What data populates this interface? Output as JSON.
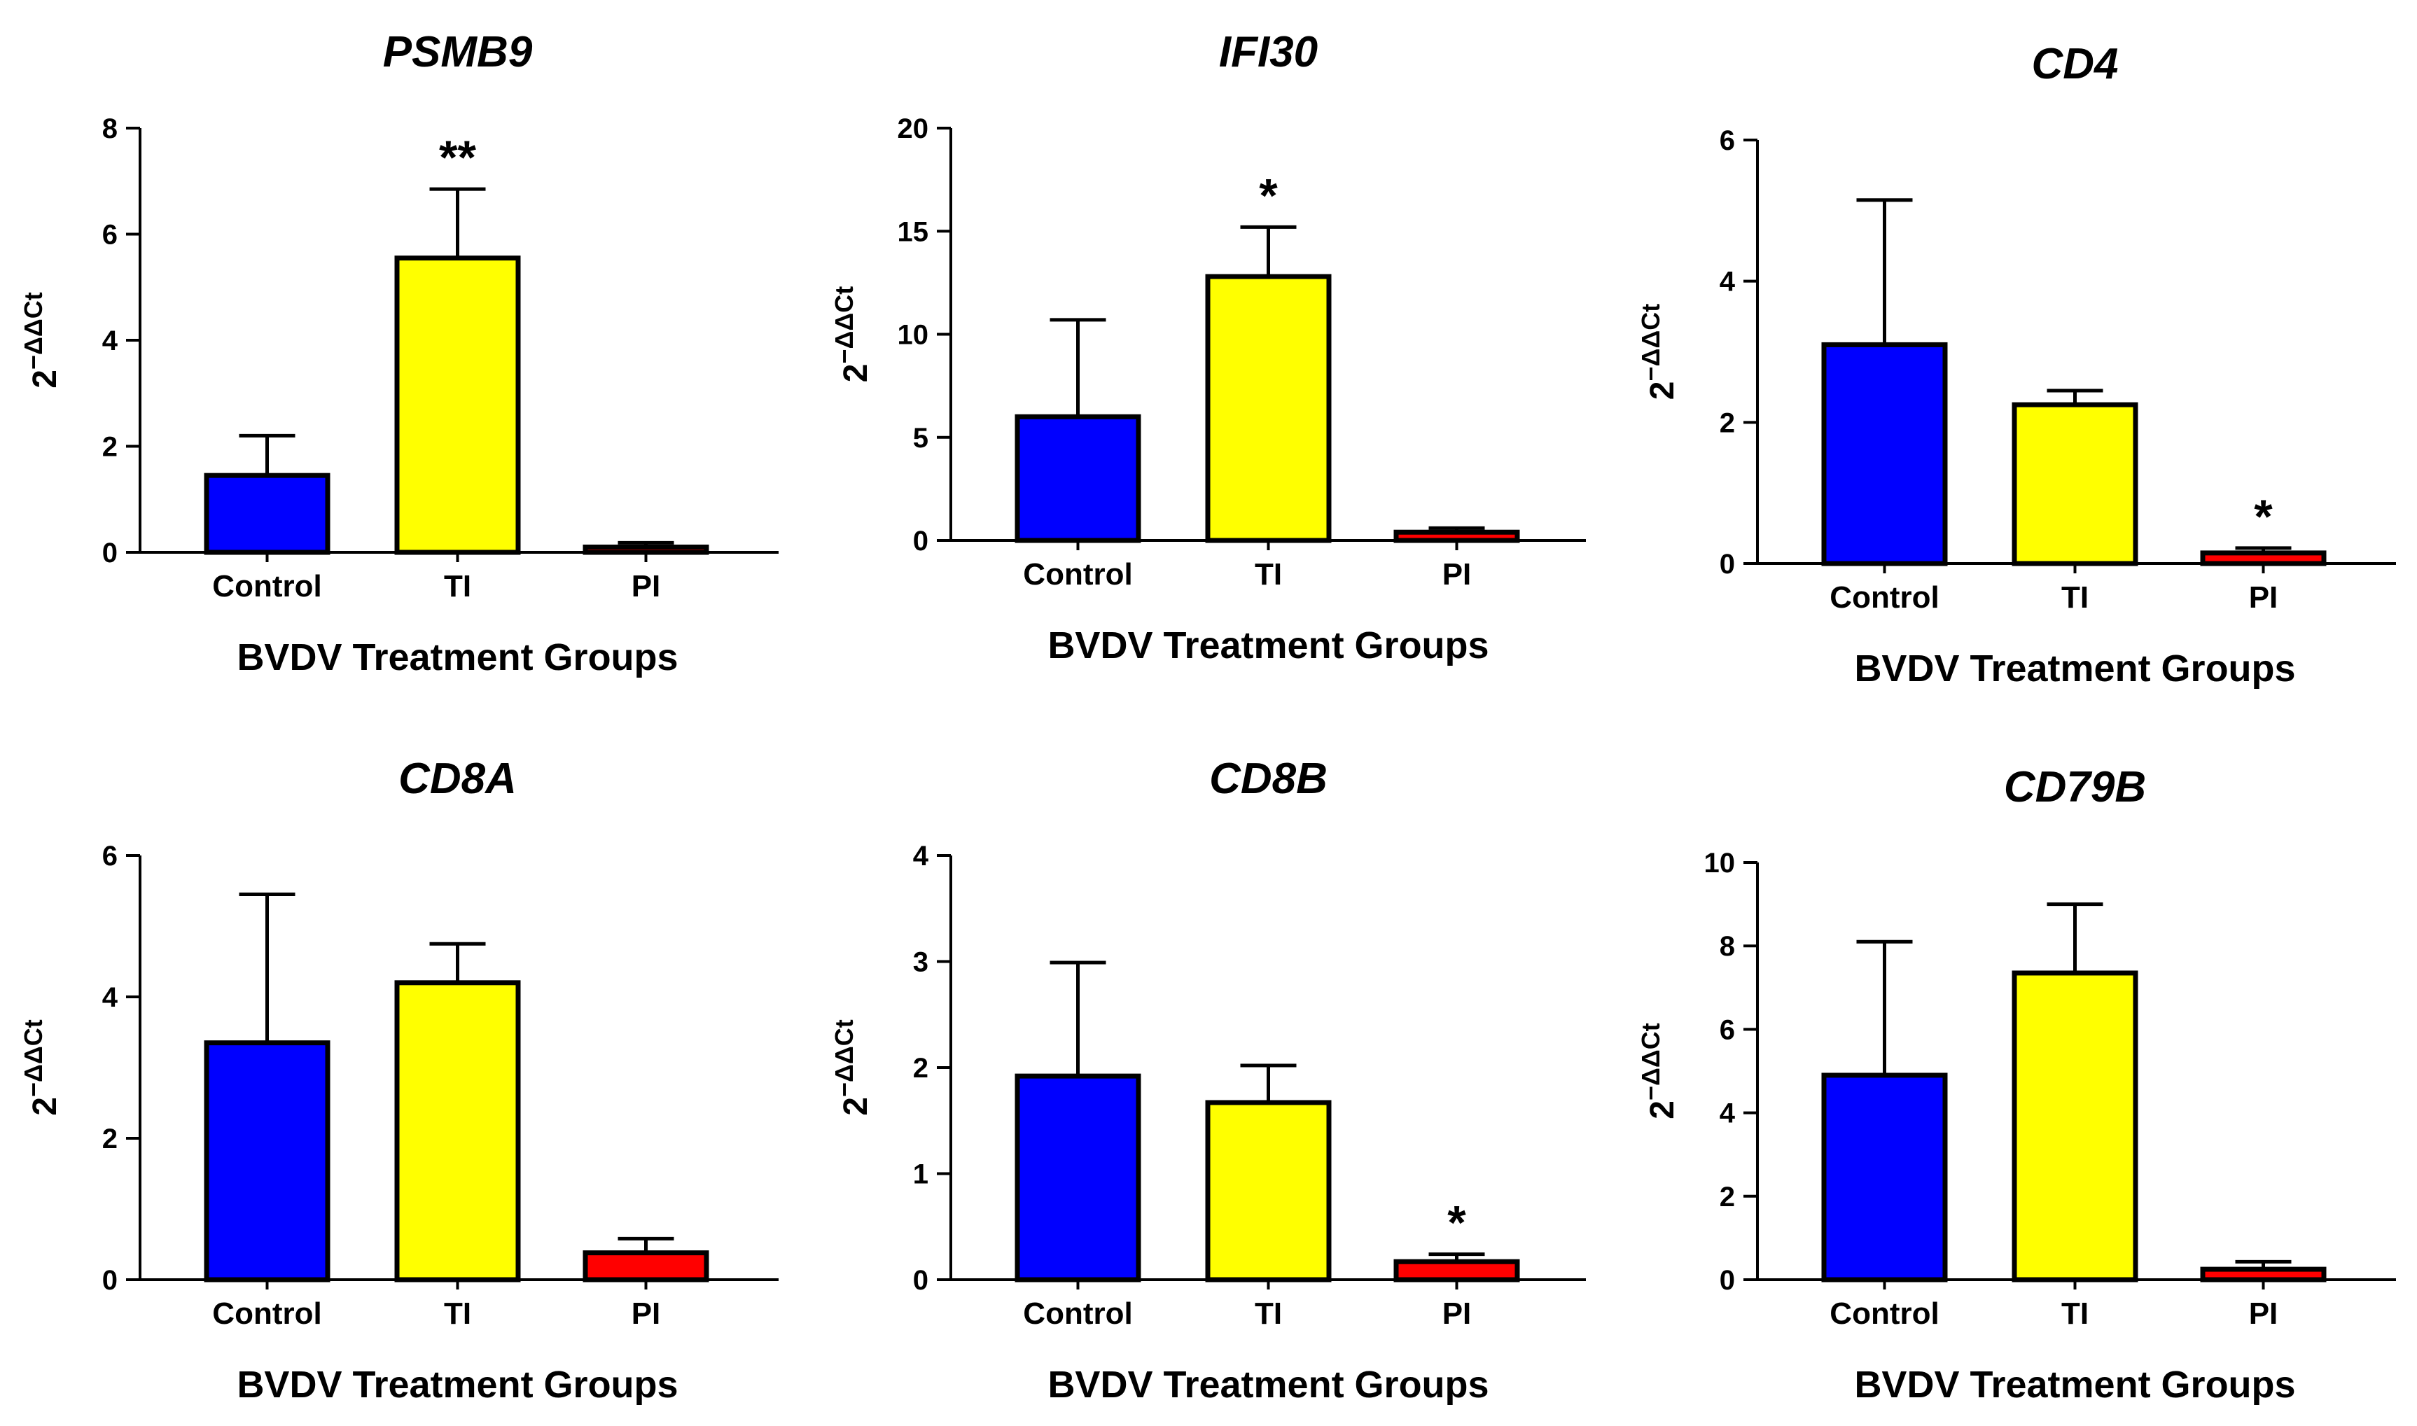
{
  "chart_data": [
    {
      "type": "bar",
      "title": "PSMB9",
      "xlabel": "BVDV Treatment Groups",
      "ylabel": "2",
      "ylabel_exponent": "−ΔΔCt",
      "categories": [
        "Control",
        "TI",
        "PI"
      ],
      "values": [
        1.45,
        5.55,
        0.1
      ],
      "errors": [
        0.75,
        1.3,
        0.08
      ],
      "significance": [
        "",
        "**",
        ""
      ],
      "colors": [
        "#0000ff",
        "#ffff00",
        "#ff0000"
      ],
      "ylim": [
        0,
        8
      ],
      "yticks": [
        0,
        2,
        4,
        6,
        8
      ]
    },
    {
      "type": "bar",
      "title": "IFI30",
      "xlabel": "BVDV Treatment Groups",
      "ylabel": "2",
      "ylabel_exponent": "−ΔΔCt",
      "categories": [
        "Control",
        "TI",
        "PI"
      ],
      "values": [
        6.0,
        12.8,
        0.4
      ],
      "errors": [
        4.7,
        2.4,
        0.2
      ],
      "significance": [
        "",
        "*",
        ""
      ],
      "colors": [
        "#0000ff",
        "#ffff00",
        "#ff0000"
      ],
      "ylim": [
        0,
        20
      ],
      "yticks": [
        0,
        5,
        10,
        15,
        20
      ]
    },
    {
      "type": "bar",
      "title": "CD4",
      "xlabel": "BVDV Treatment Groups",
      "ylabel": "2",
      "ylabel_exponent": "−ΔΔCt",
      "categories": [
        "Control",
        "TI",
        "PI"
      ],
      "values": [
        3.1,
        2.25,
        0.15
      ],
      "errors": [
        2.05,
        0.2,
        0.07
      ],
      "significance": [
        "",
        "",
        "*"
      ],
      "colors": [
        "#0000ff",
        "#ffff00",
        "#ff0000"
      ],
      "ylim": [
        0,
        6
      ],
      "yticks": [
        0,
        2,
        4,
        6
      ]
    },
    {
      "type": "bar",
      "title": "CD8A",
      "xlabel": "BVDV Treatment Groups",
      "ylabel": "2",
      "ylabel_exponent": "−ΔΔCt",
      "categories": [
        "Control",
        "TI",
        "PI"
      ],
      "values": [
        3.35,
        4.2,
        0.38
      ],
      "errors": [
        2.1,
        0.55,
        0.2
      ],
      "significance": [
        "",
        "",
        ""
      ],
      "colors": [
        "#0000ff",
        "#ffff00",
        "#ff0000"
      ],
      "ylim": [
        0,
        6
      ],
      "yticks": [
        0,
        2,
        4,
        6
      ]
    },
    {
      "type": "bar",
      "title": "CD8B",
      "xlabel": "BVDV Treatment Groups",
      "ylabel": "2",
      "ylabel_exponent": "−ΔΔCt",
      "categories": [
        "Control",
        "TI",
        "PI"
      ],
      "values": [
        1.92,
        1.67,
        0.17
      ],
      "errors": [
        1.07,
        0.35,
        0.07
      ],
      "significance": [
        "",
        "",
        "*"
      ],
      "colors": [
        "#0000ff",
        "#ffff00",
        "#ff0000"
      ],
      "ylim": [
        0,
        4
      ],
      "yticks": [
        0,
        1,
        2,
        3,
        4
      ]
    },
    {
      "type": "bar",
      "title": "CD79B",
      "xlabel": "BVDV Treatment Groups",
      "ylabel": "2",
      "ylabel_exponent": "−ΔΔCt",
      "categories": [
        "Control",
        "TI",
        "PI"
      ],
      "values": [
        4.9,
        7.35,
        0.25
      ],
      "errors": [
        3.2,
        1.65,
        0.18
      ],
      "significance": [
        "",
        "",
        ""
      ],
      "colors": [
        "#0000ff",
        "#ffff00",
        "#ff0000"
      ],
      "ylim": [
        0,
        10
      ],
      "yticks": [
        0,
        2,
        4,
        6,
        8,
        10
      ]
    }
  ]
}
